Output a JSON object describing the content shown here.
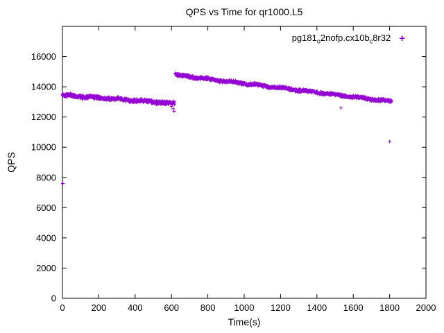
{
  "title": "QPS vs Time for qr1000.L5",
  "chart_data": {
    "type": "scatter",
    "title": "QPS vs Time for qr1000.L5",
    "xlabel": "Time(s)",
    "ylabel": "QPS",
    "xlim": [
      0,
      2000
    ],
    "ylim": [
      0,
      18000
    ],
    "xticks": [
      0,
      200,
      400,
      600,
      800,
      1000,
      1200,
      1400,
      1600,
      1800,
      2000
    ],
    "yticks": [
      0,
      2000,
      4000,
      6000,
      8000,
      10000,
      12000,
      14000,
      16000
    ],
    "grid": false,
    "background": "#ffffff",
    "border_color": "#000000",
    "marker": {
      "shape": "plus",
      "color": "#9400d3",
      "size": 2.5
    },
    "legend": {
      "position": "top-right",
      "label_plain": "pg181_o2nofp.cx10b_c8r32",
      "label_parts": [
        "pg181",
        {
          "sub": "o"
        },
        "2nofp.cx10b",
        {
          "sub": "c"
        },
        "8r32"
      ],
      "marker_glyph": "+"
    },
    "series": [
      {
        "name": "pg181_o2nofp.cx10b_c8r32",
        "trend_segments": [
          {
            "x_start": 0,
            "x_end": 616,
            "y_start": 13450,
            "y_end": 12900,
            "noise": 140,
            "points": 617
          },
          {
            "x_start": 624,
            "x_end": 1810,
            "y_start": 14780,
            "y_end": 13020,
            "noise": 115,
            "points": 1187
          }
        ],
        "outliers": [
          [
            2,
            7600
          ],
          [
            600,
            12700
          ],
          [
            609,
            12550
          ],
          [
            614,
            12380
          ],
          [
            620,
            14900
          ],
          [
            1532,
            12600
          ],
          [
            1800,
            10380
          ]
        ]
      }
    ]
  }
}
